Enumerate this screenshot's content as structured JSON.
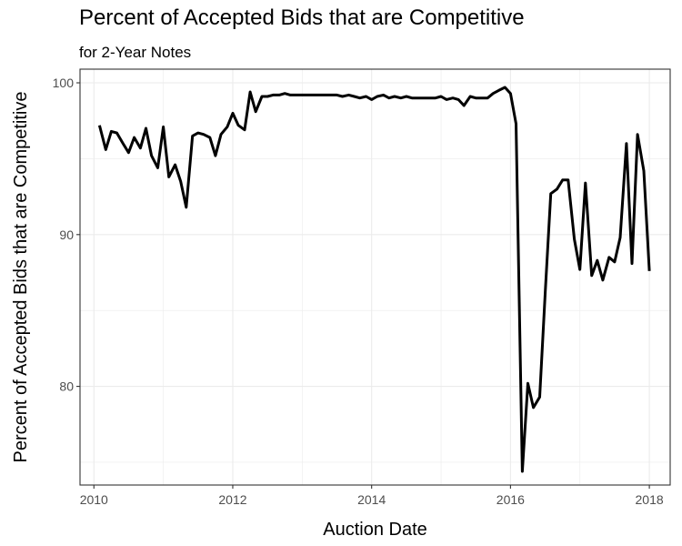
{
  "chart_data": {
    "type": "line",
    "title": "Percent of Accepted Bids that are Competitive",
    "subtitle": "for 2-Year Notes",
    "xlabel": "Auction Date",
    "ylabel": "Percent of Accepted Bids that are Competitive",
    "xlim": [
      2009.8,
      2018.3
    ],
    "ylim": [
      73.5,
      100.9
    ],
    "x_ticks": [
      2010,
      2012,
      2014,
      2016,
      2018
    ],
    "y_ticks": [
      80,
      90,
      100
    ],
    "grid": true,
    "legend": "none",
    "line_color": "#000000",
    "series": [
      {
        "x": [
          2010.08,
          2010.17,
          2010.25,
          2010.33,
          2010.42,
          2010.5,
          2010.58,
          2010.67,
          2010.75,
          2010.83,
          2010.92,
          2011.0,
          2011.08,
          2011.17,
          2011.25,
          2011.33,
          2011.42,
          2011.5,
          2011.58,
          2011.67,
          2011.75,
          2011.83,
          2011.92,
          2012.0,
          2012.08,
          2012.17,
          2012.25,
          2012.33,
          2012.42,
          2012.5,
          2012.58,
          2012.67,
          2012.75,
          2012.83,
          2012.92,
          2013.0,
          2013.08,
          2013.17,
          2013.25,
          2013.33,
          2013.42,
          2013.5,
          2013.58,
          2013.67,
          2013.75,
          2013.83,
          2013.92,
          2014.0,
          2014.08,
          2014.17,
          2014.25,
          2014.33,
          2014.42,
          2014.5,
          2014.58,
          2014.67,
          2014.75,
          2014.83,
          2014.92,
          2015.0,
          2015.08,
          2015.17,
          2015.25,
          2015.33,
          2015.42,
          2015.5,
          2015.58,
          2015.67,
          2015.75,
          2015.83,
          2015.92,
          2016.0,
          2016.08,
          2016.17,
          2016.25,
          2016.33,
          2016.42,
          2016.5,
          2016.58,
          2016.67,
          2016.75,
          2016.83,
          2016.92,
          2017.0,
          2017.08,
          2017.17,
          2017.25,
          2017.33,
          2017.42,
          2017.5,
          2017.58,
          2017.67,
          2017.75,
          2017.83,
          2017.92,
          2018.0
        ],
        "values": [
          97.2,
          95.6,
          96.8,
          96.7,
          96.0,
          95.4,
          96.4,
          95.7,
          97.0,
          95.2,
          94.4,
          97.1,
          93.8,
          94.6,
          93.5,
          91.8,
          96.5,
          96.7,
          96.6,
          96.4,
          95.2,
          96.6,
          97.1,
          98.0,
          97.2,
          96.9,
          99.4,
          98.1,
          99.1,
          99.1,
          99.2,
          99.2,
          99.3,
          99.2,
          99.2,
          99.2,
          99.2,
          99.2,
          99.2,
          99.2,
          99.2,
          99.2,
          99.1,
          99.2,
          99.1,
          99.0,
          99.1,
          98.9,
          99.1,
          99.2,
          99.0,
          99.1,
          99.0,
          99.1,
          99.0,
          99.0,
          99.0,
          99.0,
          99.0,
          99.1,
          98.9,
          99.0,
          98.9,
          98.5,
          99.1,
          99.0,
          99.0,
          99.0,
          99.3,
          99.5,
          99.7,
          99.3,
          97.3,
          74.4,
          80.2,
          78.6,
          79.3,
          86.2,
          92.7,
          93.0,
          93.6,
          93.6,
          89.7,
          87.7,
          93.4,
          87.3,
          88.3,
          87.0,
          88.5,
          88.2,
          89.8,
          96.0,
          88.1,
          96.6,
          94.2,
          87.6
        ]
      }
    ]
  }
}
